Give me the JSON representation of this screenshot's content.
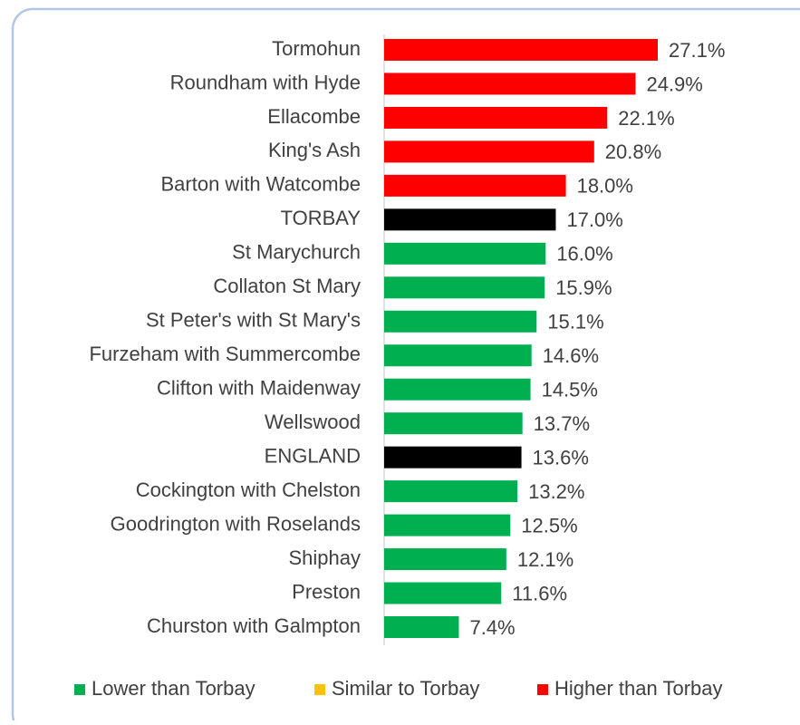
{
  "chart_data": {
    "type": "bar",
    "orientation": "horizontal",
    "categories": [
      "Tormohun",
      "Roundham with Hyde",
      "Ellacombe",
      "King's Ash",
      "Barton with Watcombe",
      "TORBAY",
      "St Marychurch",
      "Collaton St Mary",
      "St Peter's with St Mary's",
      "Furzeham with Summercombe",
      "Clifton with Maidenway",
      "Wellswood",
      "ENGLAND",
      "Cockington with Chelston",
      "Goodrington with Roselands",
      "Shiphay",
      "Preston",
      "Churston with Galmpton"
    ],
    "values": [
      27.1,
      24.9,
      22.1,
      20.8,
      18.0,
      17.0,
      16.0,
      15.9,
      15.1,
      14.6,
      14.5,
      13.7,
      13.6,
      13.2,
      12.5,
      12.1,
      11.6,
      7.4
    ],
    "value_labels": [
      "27.1%",
      "24.9%",
      "22.1%",
      "20.8%",
      "18.0%",
      "17.0%",
      "16.0%",
      "15.9%",
      "15.1%",
      "14.6%",
      "14.5%",
      "13.7%",
      "13.6%",
      "13.2%",
      "12.5%",
      "12.1%",
      "11.6%",
      "7.4%"
    ],
    "colors": [
      "#ff0000",
      "#ff0000",
      "#ff0000",
      "#ff0000",
      "#ff0000",
      "#000000",
      "#00b050",
      "#00b050",
      "#00b050",
      "#00b050",
      "#00b050",
      "#00b050",
      "#000000",
      "#00b050",
      "#00b050",
      "#00b050",
      "#00b050",
      "#00b050"
    ],
    "legend": [
      {
        "name": "Lower than Torbay",
        "color": "#00b050"
      },
      {
        "name": "Similar to Torbay",
        "color": "#ffc000"
      },
      {
        "name": "Higher than Torbay",
        "color": "#ff0000"
      }
    ],
    "legend_position": "bottom"
  }
}
